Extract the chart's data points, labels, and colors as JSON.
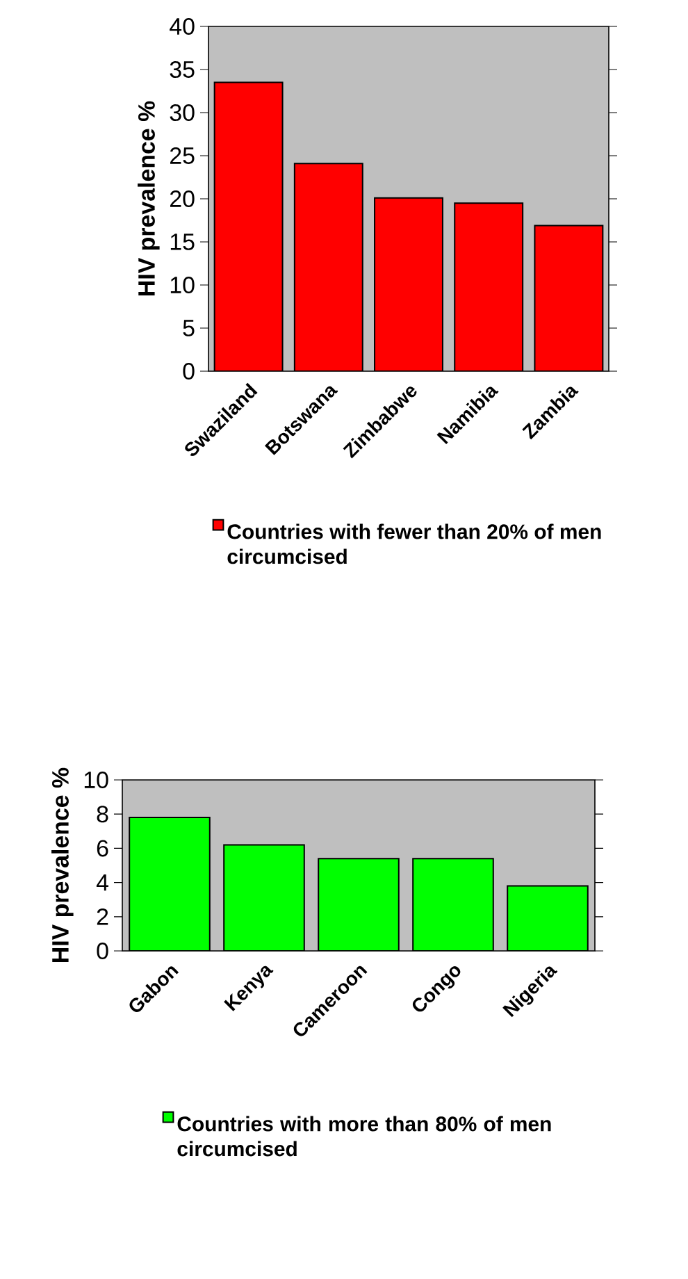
{
  "chart_data": [
    {
      "type": "bar",
      "categories": [
        "Swaziland",
        "Botswana",
        "Zimbabwe",
        "Namibia",
        "Zambia"
      ],
      "series": [
        {
          "name": "Countries with fewer than 20% of men circumcised",
          "color": "#ff0000",
          "values": [
            33.5,
            24.1,
            20.1,
            19.5,
            16.9
          ]
        }
      ],
      "ylabel": "HIV prevalence %",
      "ylim": [
        0,
        40
      ],
      "yticks": [
        0,
        5,
        10,
        15,
        20,
        25,
        30,
        35,
        40
      ],
      "legend": "bottom"
    },
    {
      "type": "bar",
      "categories": [
        "Gabon",
        "Kenya",
        "Cameroon",
        "Congo",
        "Nigeria"
      ],
      "series": [
        {
          "name": "Countries with more than 80% of men circumcised",
          "color": "#00ff00",
          "values": [
            7.8,
            6.2,
            5.4,
            5.4,
            3.8
          ]
        }
      ],
      "ylabel": "HIV prevalence %",
      "ylim": [
        0,
        10
      ],
      "yticks": [
        0,
        2,
        4,
        6,
        8,
        10
      ],
      "legend": "bottom"
    }
  ]
}
